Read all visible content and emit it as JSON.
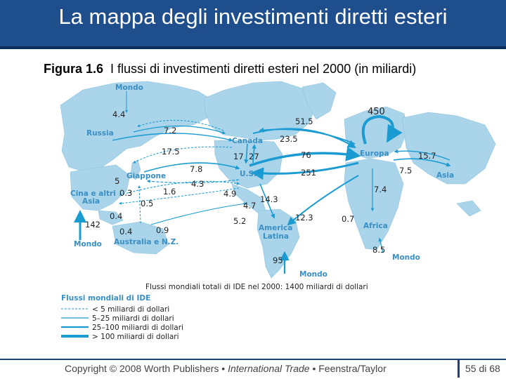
{
  "slide": {
    "title": "La mappa degli investimenti diretti esteri",
    "figure_label": "Figura 1.6",
    "figure_title": "I flussi di investimenti diretti esteri nel 2000 (in miliardi)",
    "footer": {
      "copyright": "Copyright © 2008 Worth Publishers",
      "book": "International Trade",
      "authors": "Feenstra/Taylor",
      "separator": "•",
      "page": "55 di 68"
    }
  },
  "map": {
    "region_labels": {
      "mondo_top": "Mondo",
      "russia": "Russia",
      "canada": "Canada",
      "europa": "Europa",
      "asia": "Asia",
      "giappone": "Giappone",
      "cina_line1": "Cina e altri",
      "cina_line2": "Asia",
      "us": "U.S.",
      "america_latina_line1": "America",
      "america_latina_line2": "Latina",
      "africa": "Africa",
      "australia": "Australia e N.Z.",
      "mondo_left": "Mondo",
      "mondo_bottom": "Mondo",
      "mondo_right": "Mondo"
    },
    "flow_values": {
      "v4_4": "4.4",
      "v7_2": "7.2",
      "v17_5": "17.5",
      "v51_5": "51.5",
      "v23_5": "23.5",
      "v450": "450",
      "v17": "17",
      "v27": "27",
      "v76": "76",
      "v15_7": "15.7",
      "v7_8": "7.8",
      "v251": "251",
      "v7_5": "7.5",
      "v5": "5",
      "v4_3": "4.3",
      "v0_3": "0.3",
      "v1_6": "1.6",
      "v4_9": "4.9",
      "v14_3": "14.3",
      "v7_4": "7.4",
      "v0_5": "0.5",
      "v4_7": "4.7",
      "v0_4a": "0.4",
      "v142": "142",
      "v12_3": "12.3",
      "v0_7": "0.7",
      "v5_2": "5.2",
      "v0_4b": "0.4",
      "v0_9": "0.9",
      "v8_5": "8.5",
      "v95": "95"
    },
    "total_label": "Flussi mondiali totali di IDE nel 2000: 1400 miliardi di dollari",
    "legend": {
      "title": "Flussi mondiali di IDE",
      "items": [
        "< 5 miliardi di dollari",
        "5–25 miliardi di dollari",
        "25–100 miliardi di dollari",
        "> 100 miliardi di dollari"
      ]
    }
  },
  "colors": {
    "title_bar": "#1f4e8c",
    "land": "#a9d4ea",
    "flow": "#1a9bd1",
    "label": "#3a8fc4"
  }
}
